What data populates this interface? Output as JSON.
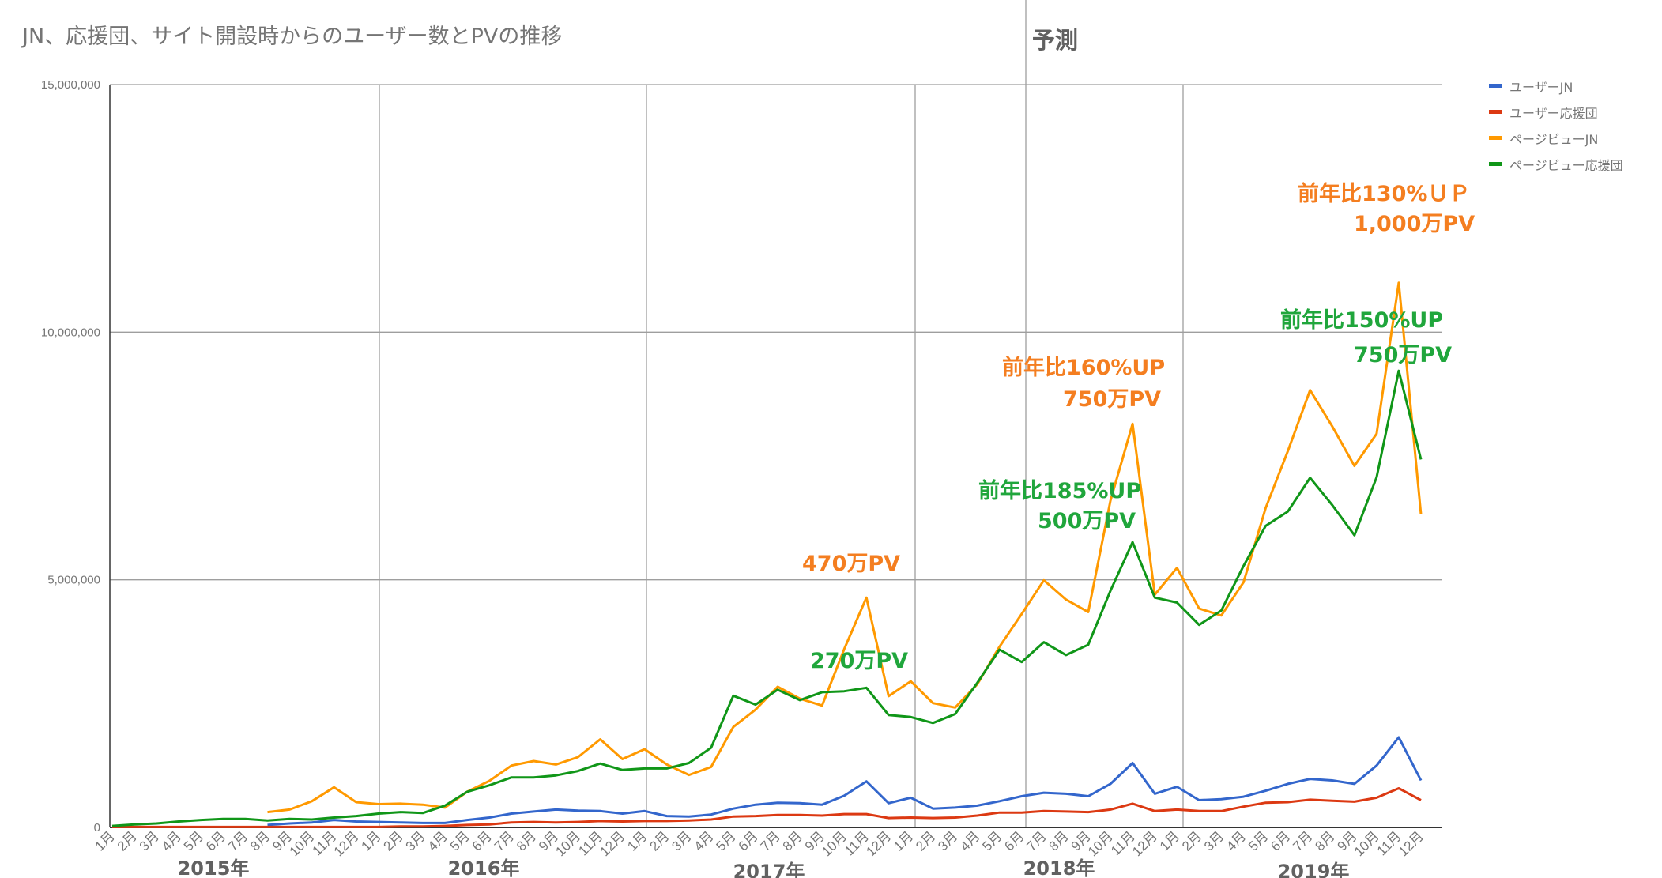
{
  "title": "JN、応援団、サイト開設時からのユーザー数とPVの推移",
  "forecast_label": "予測",
  "chart_data": {
    "type": "line",
    "ylim": [
      0,
      15000000
    ],
    "yticks": [
      "0",
      "5,000,000",
      "10,000,000",
      "15,000,000"
    ],
    "ytick_values": [
      0,
      5000000,
      10000000,
      15000000
    ],
    "grid": true,
    "legend_position": "right",
    "categories": [
      "1月",
      "2月",
      "3月",
      "4月",
      "5月",
      "6月",
      "7月",
      "8月",
      "9月",
      "10月",
      "11月",
      "12月",
      "1月",
      "2月",
      "3月",
      "4月",
      "5月",
      "6月",
      "7月",
      "8月",
      "9月",
      "10月",
      "11月",
      "12月",
      "1月",
      "2月",
      "3月",
      "4月",
      "5月",
      "6月",
      "7月",
      "8月",
      "9月",
      "10月",
      "11月",
      "12月",
      "1月",
      "2月",
      "3月",
      "4月",
      "5月",
      "6月",
      "7月",
      "8月",
      "9月",
      "10月",
      "11月",
      "12月",
      "1月",
      "2月",
      "3月",
      "4月",
      "5月",
      "6月",
      "7月",
      "8月",
      "9月",
      "10月",
      "11月",
      "12月"
    ],
    "year_labels": [
      "2015年",
      "2016年",
      "2017年",
      "2018年",
      "2019年"
    ],
    "series": [
      {
        "name": "ユーザーJN",
        "color": "#3366cc",
        "values": [
          null,
          null,
          null,
          null,
          null,
          null,
          null,
          50000,
          80000,
          100000,
          150000,
          120000,
          110000,
          100000,
          90000,
          90000,
          150000,
          200000,
          280000,
          320000,
          360000,
          340000,
          330000,
          280000,
          330000,
          230000,
          220000,
          260000,
          380000,
          460000,
          500000,
          490000,
          460000,
          640000,
          930000,
          490000,
          600000,
          380000,
          400000,
          440000,
          530000,
          630000,
          700000,
          680000,
          630000,
          880000,
          1300000,
          680000,
          820000,
          550000,
          570000,
          620000,
          740000,
          880000,
          980000,
          950000,
          880000,
          1250000,
          1820000,
          950000
        ]
      },
      {
        "name": "ユーザー応援団",
        "color": "#dc3912",
        "values": [
          10000,
          10000,
          10000,
          10000,
          10000,
          10000,
          10000,
          10000,
          10000,
          10000,
          10000,
          10000,
          10000,
          20000,
          20000,
          30000,
          50000,
          60000,
          100000,
          110000,
          100000,
          110000,
          130000,
          120000,
          130000,
          130000,
          140000,
          160000,
          220000,
          230000,
          250000,
          250000,
          240000,
          270000,
          270000,
          190000,
          200000,
          190000,
          200000,
          240000,
          300000,
          300000,
          330000,
          320000,
          310000,
          360000,
          480000,
          330000,
          360000,
          330000,
          330000,
          420000,
          500000,
          510000,
          560000,
          540000,
          520000,
          600000,
          790000,
          550000
        ]
      },
      {
        "name": "ページビューJN",
        "color": "#ff9900",
        "values": [
          null,
          null,
          null,
          null,
          null,
          null,
          null,
          310000,
          360000,
          530000,
          810000,
          510000,
          470000,
          480000,
          460000,
          400000,
          720000,
          940000,
          1250000,
          1340000,
          1270000,
          1420000,
          1780000,
          1380000,
          1580000,
          1270000,
          1060000,
          1220000,
          2030000,
          2380000,
          2840000,
          2600000,
          2460000,
          3600000,
          4640000,
          2650000,
          2950000,
          2510000,
          2420000,
          2890000,
          3650000,
          4310000,
          4990000,
          4600000,
          4350000,
          6600000,
          8150000,
          4700000,
          5240000,
          4420000,
          4280000,
          4950000,
          6450000,
          7600000,
          8830000,
          8100000,
          7300000,
          7950000,
          11000000,
          6320000
        ]
      },
      {
        "name": "ページビュー応援団",
        "color": "#109618",
        "values": [
          30000,
          60000,
          80000,
          120000,
          150000,
          170000,
          170000,
          140000,
          170000,
          160000,
          200000,
          230000,
          280000,
          310000,
          290000,
          440000,
          720000,
          850000,
          1010000,
          1010000,
          1050000,
          1140000,
          1290000,
          1160000,
          1190000,
          1190000,
          1300000,
          1610000,
          2660000,
          2480000,
          2780000,
          2570000,
          2730000,
          2750000,
          2820000,
          2270000,
          2230000,
          2110000,
          2290000,
          2920000,
          3590000,
          3340000,
          3740000,
          3480000,
          3690000,
          4780000,
          5760000,
          4640000,
          4540000,
          4090000,
          4380000,
          5280000,
          6090000,
          6380000,
          7060000,
          6510000,
          5900000,
          7070000,
          9220000,
          7430000
        ]
      }
    ],
    "annotations": [
      {
        "text": "470万PV",
        "color": "#f47e20"
      },
      {
        "text": "270万PV",
        "color": "#20a63c"
      },
      {
        "text": "前年比185%UP",
        "color": "#20a63c"
      },
      {
        "text": "500万PV",
        "color": "#20a63c"
      },
      {
        "text": "前年比160%UP",
        "color": "#f47e20"
      },
      {
        "text": "750万PV",
        "color": "#f47e20"
      },
      {
        "text": "前年比150%UP",
        "color": "#20a63c"
      },
      {
        "text": "750万PV",
        "color": "#20a63c"
      },
      {
        "text": "前年比130%ＵＰ",
        "color": "#f47e20"
      },
      {
        "text": "1,000万PV",
        "color": "#f47e20"
      }
    ]
  }
}
